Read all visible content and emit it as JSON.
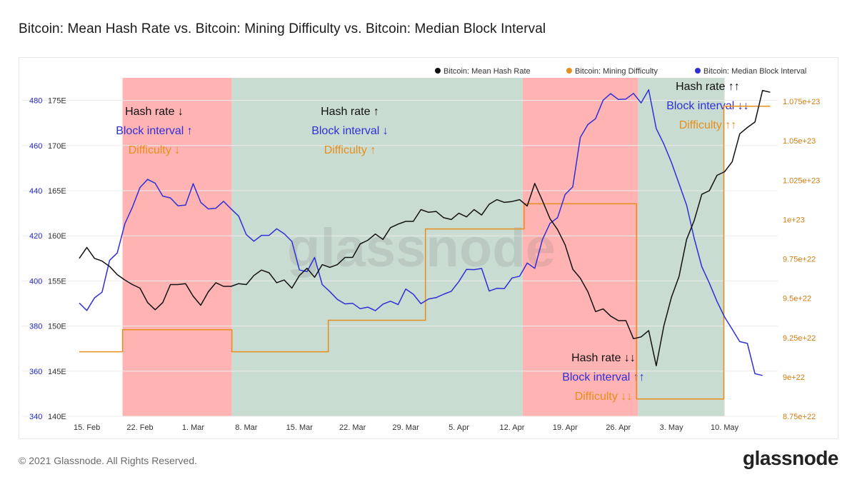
{
  "title": "Bitcoin: Mean Hash Rate vs. Bitcoin: Mining Difficulty vs. Bitcoin: Median Block Interval",
  "footer": {
    "copyright": "© 2021 Glassnode. All Rights Reserved.",
    "brand": "glassnode"
  },
  "watermark": "glassnode",
  "colors": {
    "hash_rate": "#111111",
    "difficulty": "#e88e1a",
    "block_interval": "#2f2fd6",
    "red_region": "#ffb3b3",
    "green_region": "#c9dcd2",
    "grid": "#ececec"
  },
  "chart_data": {
    "type": "line",
    "title": "Bitcoin: Mean Hash Rate vs. Bitcoin: Mining Difficulty vs. Bitcoin: Median Block Interval",
    "x_range": [
      "2021-02-15",
      "2021-05-14"
    ],
    "x_ticks": [
      "15. Feb",
      "22. Feb",
      "1. Mar",
      "8. Mar",
      "15. Mar",
      "22. Mar",
      "29. Mar",
      "5. Apr",
      "12. Apr",
      "19. Apr",
      "26. Apr",
      "3. May",
      "10. May"
    ],
    "y_axes": {
      "block_interval": {
        "ticks": [
          "340",
          "360",
          "380",
          "400",
          "420",
          "440",
          "460",
          "480"
        ],
        "range": [
          340,
          490
        ],
        "position": "left-outer"
      },
      "hash_rate": {
        "ticks": [
          "140E",
          "145E",
          "150E",
          "155E",
          "160E",
          "165E",
          "170E",
          "175E"
        ],
        "range": [
          140,
          177.5
        ],
        "position": "left-inner"
      },
      "difficulty": {
        "ticks": [
          "8.75e+22",
          "9e+22",
          "9.25e+22",
          "9.5e+22",
          "9.75e+22",
          "1e+23",
          "1.025e+23",
          "1.05e+23",
          "1.075e+23"
        ],
        "tick_values": [
          8.75,
          9.0,
          9.25,
          9.5,
          9.75,
          10.0,
          10.25,
          10.5,
          10.75
        ],
        "range": [
          8.75,
          10.9
        ],
        "unit_scale": "1e22",
        "position": "right"
      }
    },
    "legend": {
      "placement": "top-right",
      "items": [
        {
          "label": "Bitcoin: Mean Hash Rate",
          "color": "#111111"
        },
        {
          "label": "Bitcoin: Mining Difficulty",
          "color": "#e88e1a"
        },
        {
          "label": "Bitcoin: Median Block Interval",
          "color": "#2f2fd6"
        }
      ]
    },
    "regions": [
      {
        "start_day": 4.7,
        "end_day": 19.1,
        "color": "red",
        "labels": [
          {
            "text": "Hash rate ↓",
            "color": "black"
          },
          {
            "text": "Block interval ↑",
            "color": "blue"
          },
          {
            "text": "Difficulty ↓",
            "color": "orange"
          }
        ]
      },
      {
        "start_day": 19.1,
        "end_day": 57.4,
        "color": "green",
        "labels": [
          {
            "text": "Hash rate ↑",
            "color": "black"
          },
          {
            "text": "Block interval ↓",
            "color": "blue"
          },
          {
            "text": "Difficulty ↑",
            "color": "orange"
          }
        ]
      },
      {
        "start_day": 57.4,
        "end_day": 72.6,
        "color": "red",
        "labels": [
          {
            "text": "Hash rate ↓↓",
            "color": "black"
          },
          {
            "text": "Block interval ↑↑",
            "color": "blue"
          },
          {
            "text": "Difficulty ↓↓",
            "color": "orange"
          }
        ]
      },
      {
        "start_day": 72.6,
        "end_day": 84.0,
        "color": "green",
        "labels": [
          {
            "text": "Hash rate ↑↑",
            "color": "black"
          },
          {
            "text": "Block interval ↓↓",
            "color": "blue"
          },
          {
            "text": "Difficulty ↑↑",
            "color": "orange"
          }
        ]
      }
    ],
    "series": [
      {
        "name": "Bitcoin: Mean Hash Rate",
        "axis": "hash_rate",
        "points": [
          [
            -1,
            157.5
          ],
          [
            0,
            158.7
          ],
          [
            1,
            157.5
          ],
          [
            2,
            157.2
          ],
          [
            3,
            156.6
          ],
          [
            4,
            155.7
          ],
          [
            5,
            155.1
          ],
          [
            6,
            154.6
          ],
          [
            7,
            154.2
          ],
          [
            8,
            152.6
          ],
          [
            9,
            151.8
          ],
          [
            10,
            152.6
          ],
          [
            11,
            154.6
          ],
          [
            12,
            154.6
          ],
          [
            13,
            154.7
          ],
          [
            14,
            153.3
          ],
          [
            15,
            152.3
          ],
          [
            16,
            153.8
          ],
          [
            17,
            154.8
          ],
          [
            18,
            154.4
          ],
          [
            19,
            154.4
          ],
          [
            20,
            154.7
          ],
          [
            21,
            154.6
          ],
          [
            22,
            155.6
          ],
          [
            23,
            156.2
          ],
          [
            24,
            155.9
          ],
          [
            25,
            154.8
          ],
          [
            26,
            155.1
          ],
          [
            27,
            154.2
          ],
          [
            28,
            155.6
          ],
          [
            29,
            156.4
          ],
          [
            30,
            155.4
          ],
          [
            31,
            156.8
          ],
          [
            32,
            156.5
          ],
          [
            33,
            156.8
          ],
          [
            34,
            157.6
          ],
          [
            35,
            157.6
          ],
          [
            36,
            159.1
          ],
          [
            37,
            159.5
          ],
          [
            38,
            160.2
          ],
          [
            39,
            159.6
          ],
          [
            40,
            160.9
          ],
          [
            41,
            161.3
          ],
          [
            42,
            161.6
          ],
          [
            43,
            161.6
          ],
          [
            44,
            162.9
          ],
          [
            45,
            162.6
          ],
          [
            46,
            162.7
          ],
          [
            47,
            162.0
          ],
          [
            48,
            161.8
          ],
          [
            49,
            162.5
          ],
          [
            50,
            162.1
          ],
          [
            51,
            162.9
          ],
          [
            52,
            162.3
          ],
          [
            53,
            163.5
          ],
          [
            54,
            164.0
          ],
          [
            55,
            163.7
          ],
          [
            56,
            163.8
          ],
          [
            57,
            164.0
          ],
          [
            58,
            163.3
          ],
          [
            59,
            165.8
          ],
          [
            60,
            163.9
          ],
          [
            61,
            161.9
          ],
          [
            62,
            160.7
          ],
          [
            63,
            159.0
          ],
          [
            64,
            156.3
          ],
          [
            65,
            155.3
          ],
          [
            66,
            153.8
          ],
          [
            67,
            151.6
          ],
          [
            68,
            151.9
          ],
          [
            69,
            151.1
          ],
          [
            70,
            150.6
          ],
          [
            71,
            150.6
          ],
          [
            72,
            148.6
          ],
          [
            73,
            148.8
          ],
          [
            74,
            149.5
          ],
          [
            75,
            145.6
          ],
          [
            76,
            150.0
          ],
          [
            77,
            153.2
          ],
          [
            78,
            155.5
          ],
          [
            79,
            159.6
          ],
          [
            80,
            161.7
          ],
          [
            81,
            164.6
          ],
          [
            82,
            165.0
          ],
          [
            83,
            166.7
          ],
          [
            84,
            167.1
          ],
          [
            85,
            168.2
          ],
          [
            86,
            171.3
          ],
          [
            87,
            172.0
          ],
          [
            88,
            172.6
          ],
          [
            89,
            176.1
          ],
          [
            90,
            175.9
          ]
        ]
      },
      {
        "name": "Bitcoin: Mining Difficulty",
        "axis": "difficulty",
        "points": [
          [
            -1,
            9.16
          ],
          [
            4.7,
            9.16
          ],
          [
            4.7,
            9.3
          ],
          [
            19.1,
            9.3
          ],
          [
            19.1,
            9.16
          ],
          [
            31.8,
            9.16
          ],
          [
            31.8,
            9.36
          ],
          [
            44.6,
            9.36
          ],
          [
            44.6,
            9.94
          ],
          [
            57.6,
            9.94
          ],
          [
            57.6,
            10.1
          ],
          [
            72.4,
            10.1
          ],
          [
            72.4,
            8.86
          ],
          [
            83.9,
            8.86
          ],
          [
            83.9,
            10.72
          ],
          [
            90,
            10.72
          ]
        ]
      },
      {
        "name": "Bitcoin: Median Block Interval",
        "axis": "block_interval",
        "points": [
          [
            -1,
            390.2
          ],
          [
            0,
            386.9
          ],
          [
            1,
            392.5
          ],
          [
            2,
            395.0
          ],
          [
            3,
            409.1
          ],
          [
            4,
            412.4
          ],
          [
            5,
            425.3
          ],
          [
            6,
            432.7
          ],
          [
            7,
            441.4
          ],
          [
            8,
            445.0
          ],
          [
            9,
            443.3
          ],
          [
            10,
            437.6
          ],
          [
            11,
            436.8
          ],
          [
            12,
            433.3
          ],
          [
            13,
            433.6
          ],
          [
            14,
            443.1
          ],
          [
            15,
            434.8
          ],
          [
            16,
            431.9
          ],
          [
            17,
            432.2
          ],
          [
            18,
            435.3
          ],
          [
            19,
            431.9
          ],
          [
            20,
            428.7
          ],
          [
            21,
            420.5
          ],
          [
            22,
            417.6
          ],
          [
            23,
            420.2
          ],
          [
            24,
            420.2
          ],
          [
            25,
            423.1
          ],
          [
            26,
            420.9
          ],
          [
            27,
            417.5
          ],
          [
            28,
            404.8
          ],
          [
            29,
            404.1
          ],
          [
            30,
            410.4
          ],
          [
            31,
            398.4
          ],
          [
            32,
            395.3
          ],
          [
            33,
            391.8
          ],
          [
            34,
            389.8
          ],
          [
            35,
            390.1
          ],
          [
            36,
            387.7
          ],
          [
            37,
            388.4
          ],
          [
            38,
            386.8
          ],
          [
            39,
            389.7
          ],
          [
            40,
            391.0
          ],
          [
            41,
            389.5
          ],
          [
            42,
            396.4
          ],
          [
            43,
            394.1
          ],
          [
            44,
            389.9
          ],
          [
            45,
            392.0
          ],
          [
            46,
            392.6
          ],
          [
            47,
            394.1
          ],
          [
            48,
            395.4
          ],
          [
            49,
            399.7
          ],
          [
            50,
            405.1
          ],
          [
            51,
            405.0
          ],
          [
            52,
            405.5
          ],
          [
            53,
            395.5
          ],
          [
            54,
            396.7
          ],
          [
            55,
            396.6
          ],
          [
            56,
            401.3
          ],
          [
            57,
            402.1
          ],
          [
            58,
            407.9
          ],
          [
            59,
            405.6
          ],
          [
            60,
            418.3
          ],
          [
            61,
            425.5
          ],
          [
            62,
            428.0
          ],
          [
            63,
            438.3
          ],
          [
            64,
            441.7
          ],
          [
            65,
            463.6
          ],
          [
            66,
            469.3
          ],
          [
            67,
            471.9
          ],
          [
            68,
            480.1
          ],
          [
            69,
            483.0
          ],
          [
            70,
            480.4
          ],
          [
            71,
            480.6
          ],
          [
            72,
            483.1
          ],
          [
            73,
            478.9
          ],
          [
            74,
            484.7
          ],
          [
            75,
            467.5
          ],
          [
            76,
            460.7
          ],
          [
            77,
            452.5
          ],
          [
            78,
            443.1
          ],
          [
            79,
            433.6
          ],
          [
            80,
            418.8
          ],
          [
            81,
            406.3
          ],
          [
            82,
            399.0
          ],
          [
            83,
            390.9
          ],
          [
            84,
            384.0
          ],
          [
            85,
            378.6
          ],
          [
            86,
            373.1
          ],
          [
            87,
            372.3
          ],
          [
            88,
            358.9
          ],
          [
            89,
            358.1
          ]
        ]
      }
    ]
  }
}
